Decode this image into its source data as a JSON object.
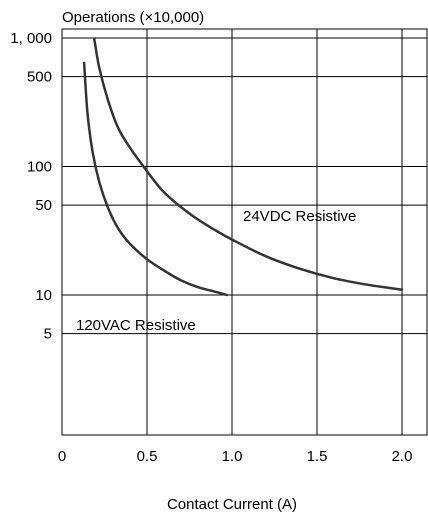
{
  "chart_data": {
    "type": "line",
    "title": "Operations (×10,000)",
    "xlabel": "Contact Current (A)",
    "ylabel": "",
    "xlim": [
      0,
      2.1
    ],
    "ylim": [
      1,
      1200
    ],
    "y_scale": "log",
    "grid": true,
    "x_ticks": [
      {
        "value": 0,
        "label": "0"
      },
      {
        "value": 0.5,
        "label": "0.5"
      },
      {
        "value": 1.0,
        "label": "1.0"
      },
      {
        "value": 1.5,
        "label": "1.5"
      },
      {
        "value": 2.0,
        "label": "2.0"
      }
    ],
    "y_ticks": [
      {
        "value": 1000,
        "label": "1, 000"
      },
      {
        "value": 500,
        "label": "500"
      },
      {
        "value": 100,
        "label": "100"
      },
      {
        "value": 50,
        "label": "50"
      },
      {
        "value": 10,
        "label": "10"
      },
      {
        "value": 5,
        "label": "5"
      }
    ],
    "series": [
      {
        "name": "120VAC Resistive",
        "x": [
          0.13,
          0.15,
          0.18,
          0.22,
          0.27,
          0.33,
          0.4,
          0.5,
          0.6,
          0.7,
          0.8,
          0.9,
          0.97
        ],
        "y": [
          640,
          260,
          130,
          75,
          48,
          33,
          25,
          19,
          15.5,
          13,
          11.5,
          10.6,
          10
        ]
      },
      {
        "name": "24VDC Resistive",
        "x": [
          0.19,
          0.22,
          0.27,
          0.33,
          0.4,
          0.5,
          0.6,
          0.75,
          0.9,
          1.0,
          1.2,
          1.4,
          1.6,
          1.8,
          2.0
        ],
        "y": [
          980,
          580,
          330,
          200,
          140,
          92,
          63,
          43,
          32,
          27,
          20,
          16,
          13.5,
          12,
          11
        ]
      }
    ]
  }
}
